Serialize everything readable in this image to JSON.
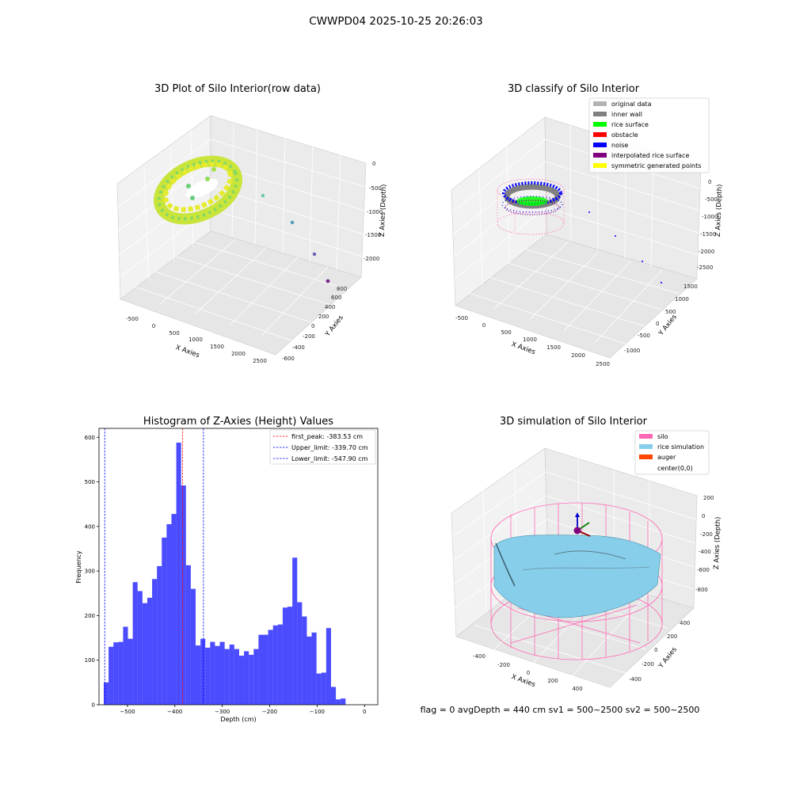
{
  "suptitle": "CWWPD04 2025-10-25 20:26:03",
  "status_line": "flag = 0     avgDepth = 440 cm  sv1 = 500~2500  sv2 = 500~2500",
  "panel1": {
    "title": "3D Plot of Silo Interior(row data)",
    "xlabel": "X Axies",
    "ylabel": "Y Axies",
    "zlabel": "Z Axies (Depth)",
    "xticks": [
      "-500",
      "0",
      "500",
      "1000",
      "1500",
      "2000",
      "2500"
    ],
    "yticks": [
      "-600",
      "-400",
      "-200",
      "0",
      "200",
      "400",
      "600",
      "800"
    ],
    "zticks": [
      "0",
      "-500",
      "-1000",
      "-1500",
      "-2000"
    ]
  },
  "panel2": {
    "title": "3D classify of Silo Interior",
    "xlabel": "X Axies",
    "ylabel": "Y Axies",
    "zlabel": "Z Axies (Depth)",
    "xticks": [
      "-500",
      "0",
      "500",
      "1000",
      "1500",
      "2000",
      "2500"
    ],
    "yticks": [
      "-1000",
      "-500",
      "0",
      "500",
      "1000",
      "1500"
    ],
    "zticks": [
      "0",
      "-500",
      "-1000",
      "-1500",
      "-2000",
      "-2500"
    ],
    "legend": [
      {
        "label": "original data",
        "color": "#b3b3b3"
      },
      {
        "label": "inner wall",
        "color": "#808080"
      },
      {
        "label": "rice surface",
        "color": "#00ff00"
      },
      {
        "label": "obstacle",
        "color": "#ff0000"
      },
      {
        "label": "noise",
        "color": "#0000ff"
      },
      {
        "label": "interpolated rice surface",
        "color": "#800080"
      },
      {
        "label": "symmetric generated points",
        "color": "#ffff00"
      }
    ]
  },
  "panel4": {
    "title": "3D simulation of Silo Interior",
    "xlabel": "X Axies",
    "ylabel": "Y Axies",
    "zlabel": "Z Axies (Depth)",
    "xticks": [
      "-400",
      "-200",
      "0",
      "200",
      "400"
    ],
    "yticks": [
      "-400",
      "-200",
      "0",
      "200",
      "400"
    ],
    "zticks": [
      "200",
      "0",
      "-200",
      "-400",
      "-600",
      "-800"
    ],
    "legend": [
      {
        "label": "silo",
        "color": "#ff69b4"
      },
      {
        "label": "rice simulation",
        "color": "#87ceeb"
      },
      {
        "label": "auger",
        "color": "#ff4500"
      },
      {
        "label": "center(0,0)",
        "color": ""
      }
    ]
  },
  "chart_data": [
    {
      "type": "bar",
      "title": "Histogram of Z-Axies (Height) Values",
      "xlabel": "Depth (cm)",
      "ylabel": "Frequency",
      "bar_color": "#0000ff",
      "xlim": [
        -560,
        28
      ],
      "ylim": [
        0,
        620
      ],
      "xticks": [
        -500,
        -400,
        -300,
        -200,
        -100,
        0
      ],
      "yticks": [
        0,
        100,
        200,
        300,
        400,
        500,
        600
      ],
      "bin_start": -550,
      "bin_width": 10.2,
      "values": [
        50,
        130,
        140,
        141,
        175,
        148,
        275,
        255,
        228,
        240,
        282,
        311,
        375,
        405,
        428,
        588,
        492,
        313,
        260,
        133,
        148,
        128,
        141,
        132,
        141,
        125,
        135,
        125,
        110,
        120,
        112,
        125,
        157,
        157,
        168,
        178,
        180,
        218,
        220,
        330,
        230,
        198,
        153,
        162,
        70,
        72,
        172,
        40,
        12,
        14
      ],
      "reference_lines": [
        {
          "name": "first_peak: -383.53 cm",
          "x": -383.53,
          "color": "#ff0000"
        },
        {
          "name": "Upper_limit: -339.70 cm",
          "x": -339.7,
          "color": "#0000ff"
        },
        {
          "name": "Lower_limit: -547.90 cm",
          "x": -547.9,
          "color": "#0000ff"
        }
      ],
      "legend_position": "top-right"
    }
  ]
}
